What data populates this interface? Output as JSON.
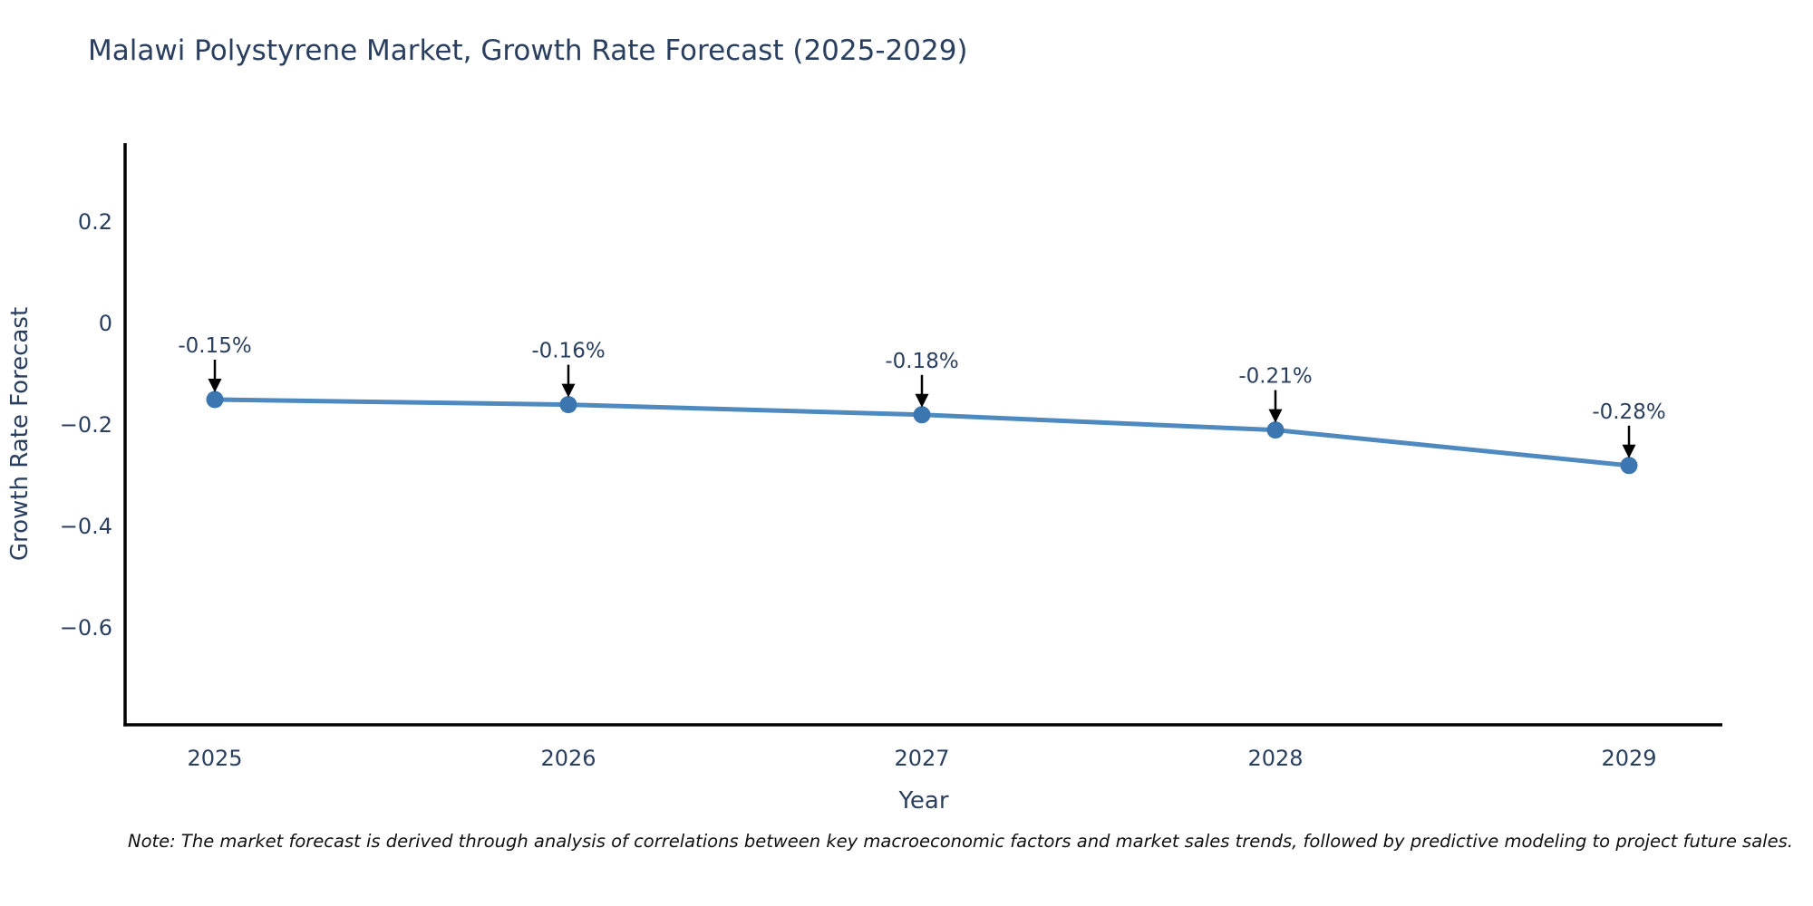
{
  "title": "Malawi Polystyrene Market, Growth Rate Forecast (2025-2029)",
  "note": "Note: The market forecast is derived through analysis of correlations between key macroeconomic factors and market sales trends, followed by predictive modeling to project future sales.",
  "chart_data": {
    "type": "line",
    "title": "Malawi Polystyrene Market, Growth Rate Forecast (2025-2029)",
    "xlabel": "Year",
    "ylabel": "Growth Rate Forecast",
    "x": [
      2025,
      2026,
      2027,
      2028,
      2029
    ],
    "y": [
      -0.15,
      -0.16,
      -0.18,
      -0.21,
      -0.28
    ],
    "point_labels": [
      "-0.15%",
      "-0.16%",
      "-0.18%",
      "-0.21%",
      "-0.28%"
    ],
    "xtick_labels": [
      "2025",
      "2026",
      "2027",
      "2028",
      "2029"
    ],
    "yticks": [
      0.2,
      0,
      -0.2,
      -0.4,
      -0.6
    ],
    "ytick_labels": [
      "0.2",
      "0",
      "−0.2",
      "−0.4",
      "−0.6"
    ],
    "ylim": [
      -0.8,
      0.36
    ],
    "grid": false,
    "legend": "none",
    "colors": {
      "line": "#4e89c0",
      "marker": "#3c76b0",
      "axis": "#000000",
      "text": "#2a3f5f",
      "annotation_arrow": "#000000"
    }
  }
}
